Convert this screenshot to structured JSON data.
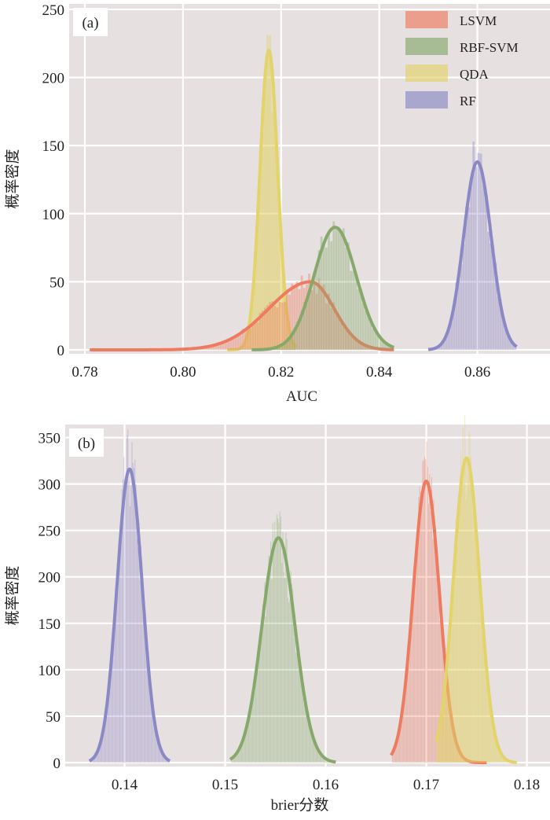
{
  "chart_data": [
    {
      "type": "area",
      "panel_label": "(a)",
      "xlabel": "AUC",
      "ylabel": "概率密度",
      "xlim": [
        0.7768,
        0.8748
      ],
      "ylim": [
        0,
        254
      ],
      "xticks": [
        "0.78",
        "0.80",
        "0.82",
        "0.84",
        "0.86"
      ],
      "yticks": [
        "0",
        "50",
        "100",
        "150",
        "200",
        "250"
      ],
      "grid": true,
      "legend": {
        "position": "top-right",
        "entries": [
          "LSVM",
          "RBF-SVM",
          "QDA",
          "RF"
        ]
      },
      "series": [
        {
          "name": "LSVM",
          "color": "#ee7b60",
          "mean": 0.826,
          "std_left": 0.0085,
          "std_right": 0.0048,
          "peak_density": 50,
          "range": [
            0.781,
            0.843
          ],
          "filled": false
        },
        {
          "name": "RBF-SVM",
          "color": "#86a96b",
          "mean": 0.831,
          "std_left": 0.0043,
          "std_right": 0.0043,
          "peak_density": 90,
          "range": [
            0.814,
            0.843
          ],
          "filled": false
        },
        {
          "name": "QDA",
          "color": "#e2d36a",
          "mean": 0.8175,
          "std_left": 0.0018,
          "std_right": 0.0018,
          "peak_density": 220,
          "range": [
            0.809,
            0.823
          ],
          "filled": true
        },
        {
          "name": "RF",
          "color": "#8b88c6",
          "mean": 0.86,
          "std_left": 0.0028,
          "std_right": 0.0028,
          "peak_density": 138,
          "range": [
            0.85,
            0.868
          ],
          "filled": false
        }
      ]
    },
    {
      "type": "area",
      "panel_label": "(b)",
      "xlabel": "brier分数",
      "ylabel": "概率密度",
      "xlim": [
        0.1341,
        0.1823
      ],
      "ylim": [
        0,
        364
      ],
      "xticks": [
        "0.14",
        "0.15",
        "0.16",
        "0.17",
        "0.18"
      ],
      "yticks": [
        "0",
        "50",
        "100",
        "150",
        "200",
        "250",
        "300",
        "350"
      ],
      "grid": true,
      "series": [
        {
          "name": "LSVM",
          "color": "#ee7b60",
          "mean": 0.17,
          "std_left": 0.0013,
          "std_right": 0.0013,
          "peak_density": 303,
          "range": [
            0.1665,
            0.176
          ],
          "filled": false
        },
        {
          "name": "RBF-SVM",
          "color": "#86a96b",
          "mean": 0.1553,
          "std_left": 0.00165,
          "std_right": 0.00165,
          "peak_density": 242,
          "range": [
            0.1505,
            0.161
          ],
          "filled": false
        },
        {
          "name": "QDA",
          "color": "#e2d36a",
          "mean": 0.174,
          "std_left": 0.0013,
          "std_right": 0.0013,
          "peak_density": 328,
          "range": [
            0.171,
            0.179
          ],
          "filled": true
        },
        {
          "name": "RF",
          "color": "#8b88c6",
          "mean": 0.1405,
          "std_left": 0.00125,
          "std_right": 0.00125,
          "peak_density": 316,
          "range": [
            0.1365,
            0.1445
          ],
          "filled": false
        }
      ]
    }
  ],
  "colors": {
    "background": "#e6e0e0",
    "grid": "#ffffff"
  }
}
